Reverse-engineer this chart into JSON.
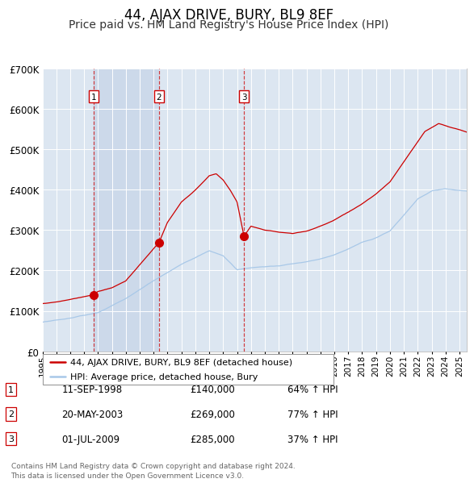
{
  "title": "44, AJAX DRIVE, BURY, BL9 8EF",
  "subtitle": "Price paid vs. HM Land Registry's House Price Index (HPI)",
  "title_fontsize": 12,
  "subtitle_fontsize": 10,
  "bg_color": "#dce6f1",
  "grid_color": "#ffffff",
  "red_line_color": "#cc0000",
  "blue_line_color": "#a8c8e8",
  "sale_marker_color": "#cc0000",
  "vline_color": "#cc0000",
  "ylim": [
    0,
    700000
  ],
  "sales": [
    {
      "label": "1",
      "date_x": 1998.69,
      "price": 140000,
      "pct": "64%",
      "date_str": "11-SEP-1998"
    },
    {
      "label": "2",
      "date_x": 2003.38,
      "price": 269000,
      "pct": "77%",
      "date_str": "20-MAY-2003"
    },
    {
      "label": "3",
      "date_x": 2009.5,
      "price": 285000,
      "pct": "37%",
      "date_str": "01-JUL-2009"
    }
  ],
  "legend_line1": "44, AJAX DRIVE, BURY, BL9 8EF (detached house)",
  "legend_line2": "HPI: Average price, detached house, Bury",
  "footer": "Contains HM Land Registry data © Crown copyright and database right 2024.\nThis data is licensed under the Open Government Licence v3.0.",
  "xmin": 1995.0,
  "xmax": 2025.5,
  "shade_colors": [
    "#dce6f1",
    "#ccd9ea",
    "#dce6f1",
    "#dce6f1"
  ]
}
